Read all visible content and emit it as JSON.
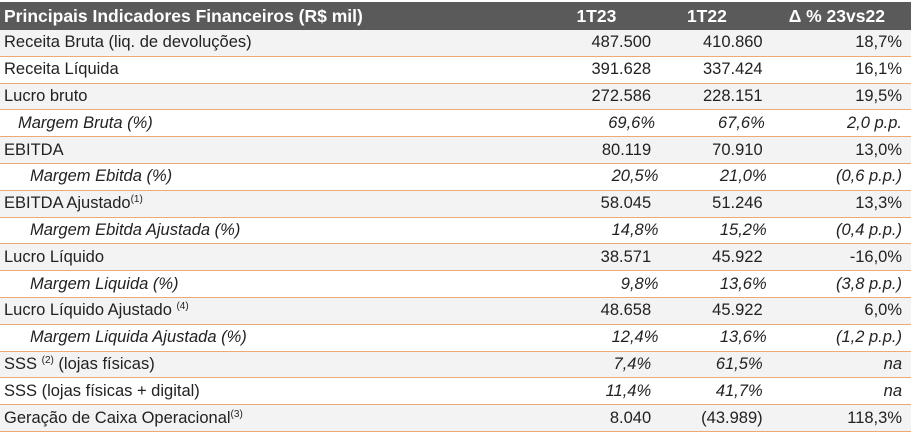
{
  "header": {
    "label": "Principais Indicadores Financeiros (R$ mil)",
    "col1": "1T23",
    "col2": "1T22",
    "col3": "Δ % 23vs22"
  },
  "rows": [
    {
      "label": "Receita Bruta (liq. de devoluções)",
      "sup": "",
      "v1": "487.500",
      "v2": "410.860",
      "v3": "18,7%"
    },
    {
      "label": "Receita Líquida",
      "sup": "",
      "v1": "391.628",
      "v2": "337.424",
      "v3": "16,1%"
    },
    {
      "label": "Lucro bruto",
      "sup": "",
      "v1": "272.586",
      "v2": "228.151",
      "v3": "19,5%"
    },
    {
      "label": "Margem Bruta (%)",
      "sup": "",
      "v1": "69,6%",
      "v2": "67,6%",
      "v3": "2,0 p.p."
    },
    {
      "label": "EBITDA",
      "sup": "",
      "v1": "80.119",
      "v2": "70.910",
      "v3": "13,0%"
    },
    {
      "label": "Margem Ebitda (%)",
      "sup": "",
      "v1": "20,5%",
      "v2": "21,0%",
      "v3": "(0,6 p.p.)"
    },
    {
      "label": "EBITDA Ajustado",
      "sup": "(1)",
      "v1": "58.045",
      "v2": "51.246",
      "v3": "13,3%"
    },
    {
      "label": "Margem Ebitda Ajustada (%)",
      "sup": "",
      "v1": "14,8%",
      "v2": "15,2%",
      "v3": "(0,4 p.p.)"
    },
    {
      "label": "Lucro Líquido",
      "sup": "",
      "v1": "38.571",
      "v2": "45.922",
      "v3": "-16,0%"
    },
    {
      "label": "Margem Liquida (%)",
      "sup": "",
      "v1": "9,8%",
      "v2": "13,6%",
      "v3": "(3,8 p.p.)"
    },
    {
      "label": "Lucro Líquido Ajustado ",
      "sup": "(4)",
      "v1": "48.658",
      "v2": "45.922",
      "v3": "6,0%"
    },
    {
      "label": "Margem Liquida Ajustada (%)",
      "sup": "",
      "v1": "12,4%",
      "v2": "13,6%",
      "v3": "(1,2 p.p.)"
    },
    {
      "label": "SSS ",
      "sup": "(2)",
      "label_after": " (lojas físicas)",
      "v1": "7,4%",
      "v2": "61,5%",
      "v3": "na"
    },
    {
      "label": "SSS (lojas físicas + digital)",
      "sup": "",
      "v1": "11,4%",
      "v2": "41,7%",
      "v3": "na"
    },
    {
      "label": "Geração de Caixa Operacional",
      "sup": "(3)",
      "v1": "8.040",
      "v2": "(43.989)",
      "v3": "118,3%"
    }
  ]
}
